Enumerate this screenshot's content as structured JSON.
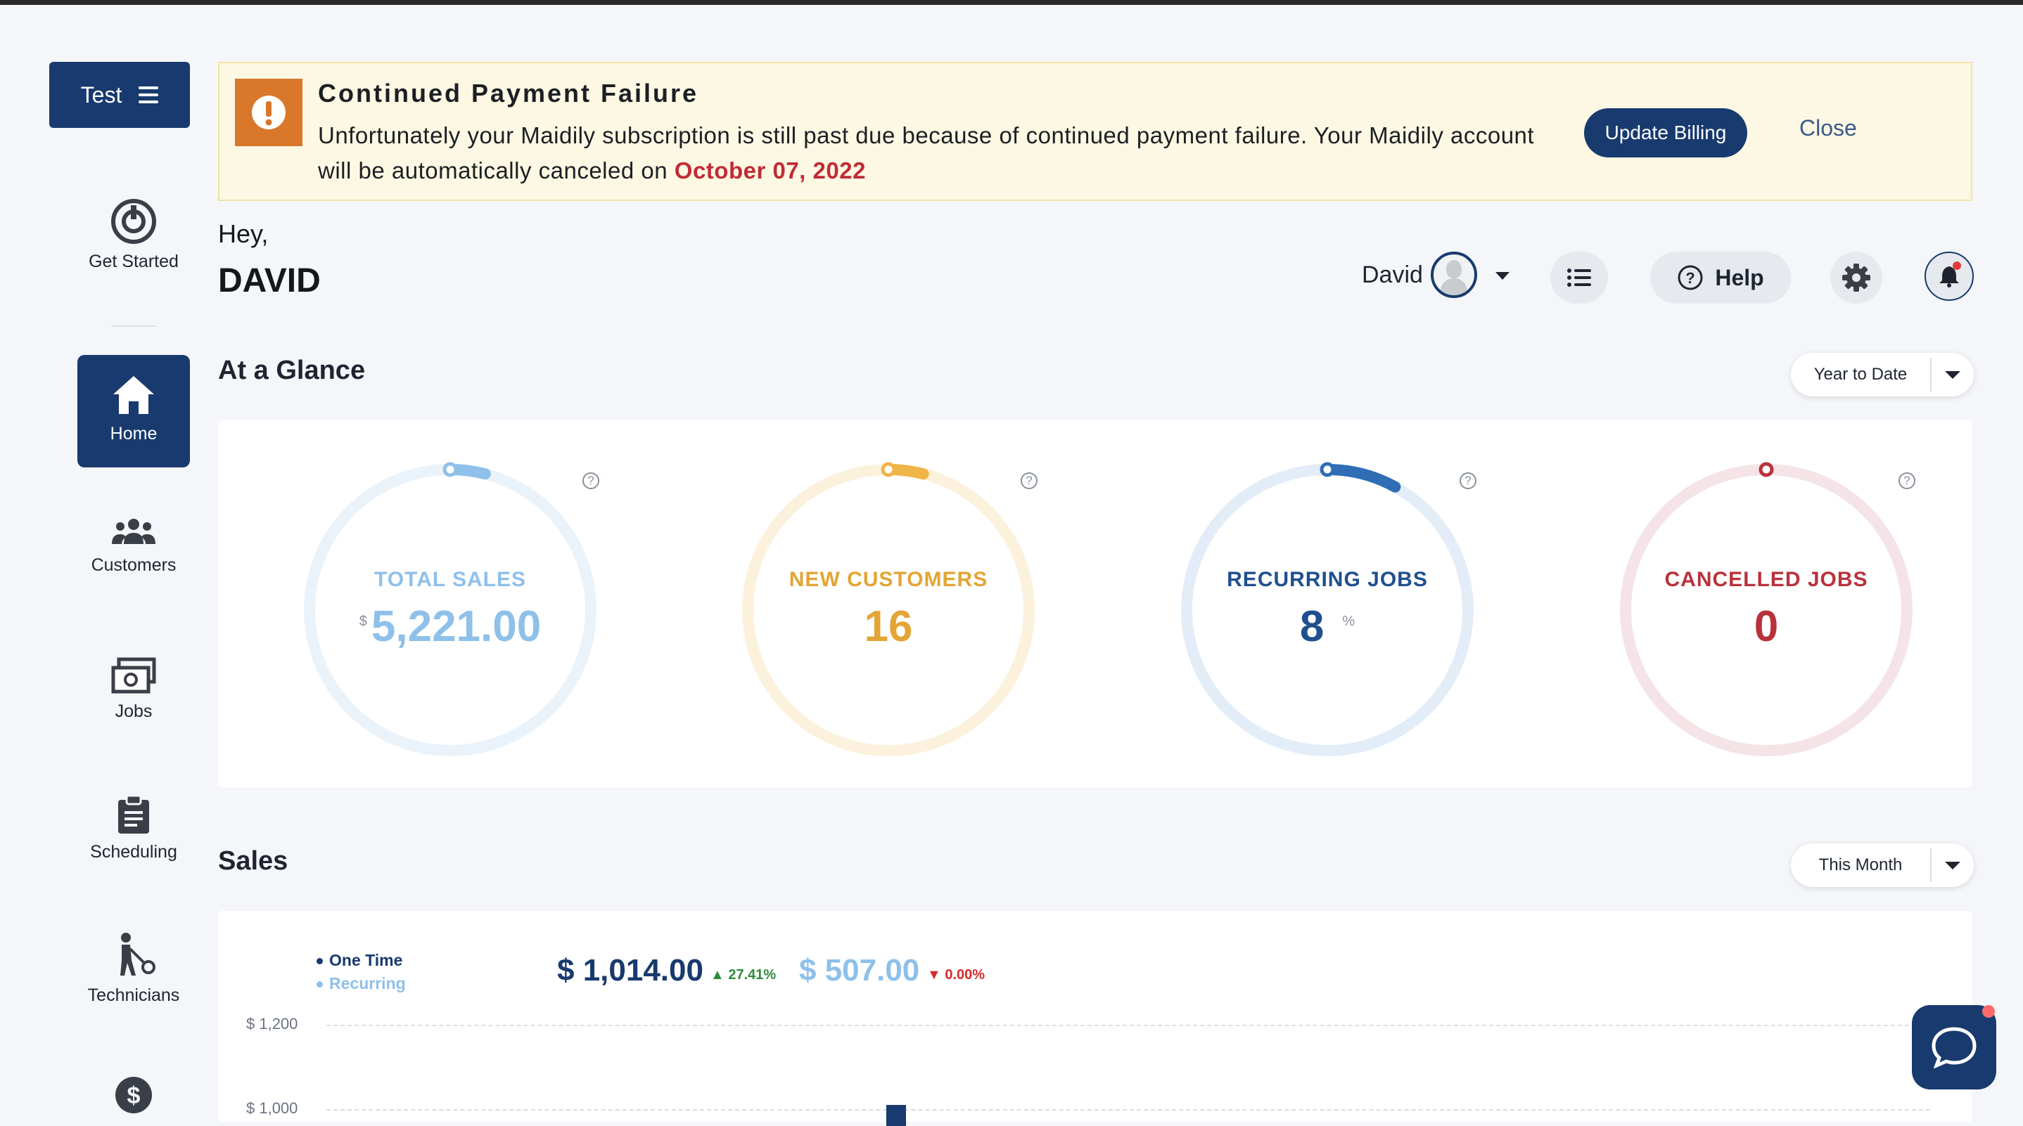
{
  "sidebar": {
    "brand_label": "Test",
    "items": [
      {
        "label": "Get Started",
        "icon": "power-icon"
      },
      {
        "label": "Home",
        "icon": "home-icon",
        "active": true
      },
      {
        "label": "Customers",
        "icon": "users-icon"
      },
      {
        "label": "Jobs",
        "icon": "jobs-icon"
      },
      {
        "label": "Scheduling",
        "icon": "clipboard-icon"
      },
      {
        "label": "Technicians",
        "icon": "technician-icon"
      },
      {
        "label": "",
        "icon": "dollar-icon"
      }
    ]
  },
  "alert": {
    "title": "Continued Payment Failure",
    "message": "Unfortunately your Maidily subscription is still past due because of continued payment failure. Your Maidily account will be automatically canceled on",
    "date": "October 07, 2022",
    "update_label": "Update Billing",
    "close_label": "Close",
    "icon": "exclamation-icon"
  },
  "greeting": {
    "hey": "Hey,",
    "name": "DAVID"
  },
  "header": {
    "user_name": "David",
    "help_label": "Help"
  },
  "glance": {
    "title": "At a Glance",
    "range_label": "Year to Date",
    "gauges": [
      {
        "label": "TOTAL SALES",
        "prefix": "$",
        "value": "5,221.00",
        "suffix": "",
        "color": "#8ec0ea",
        "track": "#eaf2fa",
        "progress": 0.04
      },
      {
        "label": "NEW CUSTOMERS",
        "prefix": "",
        "value": "16",
        "suffix": "",
        "color": "#f0b547",
        "label_color": "#e3a535",
        "track": "#fcf1dc",
        "progress": 0.04
      },
      {
        "label": "RECURRING JOBS",
        "prefix": "",
        "value": "8",
        "suffix": "%",
        "color": "#2f6db5",
        "label_color": "#1f4f8f",
        "track": "#e3edf8",
        "progress": 0.08
      },
      {
        "label": "CANCELLED JOBS",
        "prefix": "",
        "value": "0",
        "suffix": "",
        "color": "#b8323c",
        "label_color": "#b8323c",
        "track": "#f5e4e7",
        "progress": 0.0
      }
    ]
  },
  "sales": {
    "title": "Sales",
    "range_label": "This Month",
    "legend": [
      {
        "label": "One Time",
        "color": "#183a6e"
      },
      {
        "label": "Recurring",
        "color": "#8ec0ea"
      }
    ],
    "one_time_amount": "$ 1,014.00",
    "one_time_change": "27.41%",
    "recurring_amount": "$ 507.00",
    "recurring_change": "0.00%",
    "colors": {
      "up": "#2e8b3a",
      "down": "#d12b2b"
    }
  },
  "chart_data": {
    "type": "bar",
    "ylabel": "",
    "y_ticks": [
      "$ 1,200",
      "$ 1,000"
    ],
    "series": [
      {
        "name": "One Time",
        "color": "#183a6e"
      },
      {
        "name": "Recurring",
        "color": "#8ec0ea"
      }
    ]
  }
}
